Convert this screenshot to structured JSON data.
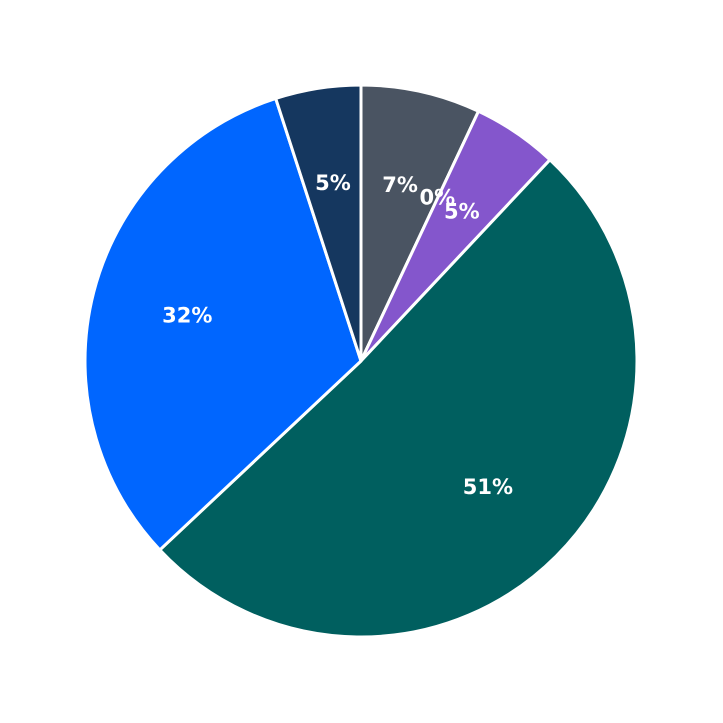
{
  "chart_data": {
    "type": "pie",
    "values": [
      7,
      0,
      5,
      51,
      32,
      5
    ],
    "value_labels": [
      "7%",
      "0%",
      "5%",
      "51%",
      "32%",
      "5%"
    ],
    "colors": [
      "#4a5462",
      "#6a6a8a",
      "#8456cc",
      "#005f5f",
      "#0066ff",
      "#15375f"
    ]
  }
}
